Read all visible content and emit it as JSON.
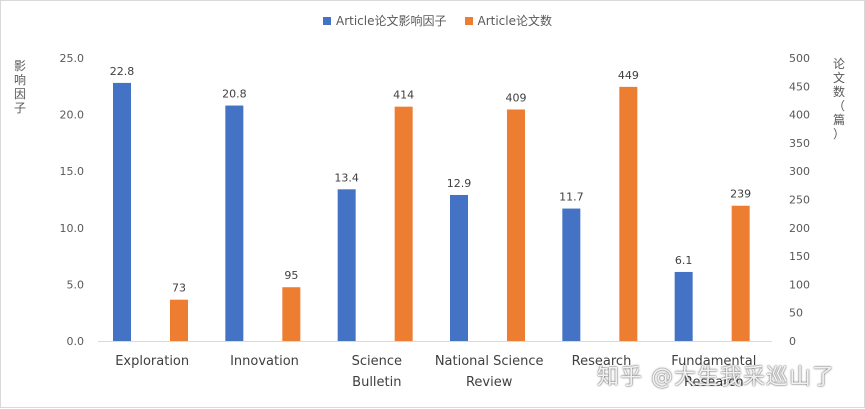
{
  "chart_data": {
    "type": "bar",
    "categories": [
      "Exploration",
      "Innovation",
      "Science Bulletin",
      "National Science Review",
      "Research",
      "Fundamental Research"
    ],
    "category_lines": [
      [
        "Exploration"
      ],
      [
        "Innovation"
      ],
      [
        "Science",
        "Bulletin"
      ],
      [
        "National Science",
        "Review"
      ],
      [
        "Research"
      ],
      [
        "Fundamental",
        "Research"
      ]
    ],
    "series": [
      {
        "name": "Article论文影响因子",
        "axis": "left",
        "color": "#4472C4",
        "values": [
          22.8,
          20.8,
          13.4,
          12.9,
          11.7,
          6.1
        ],
        "labels": [
          "22.8",
          "20.8",
          "13.4",
          "12.9",
          "11.7",
          "6.1"
        ]
      },
      {
        "name": "Article论文数",
        "axis": "right",
        "color": "#ED7D31",
        "values": [
          73,
          95,
          414,
          409,
          449,
          239
        ],
        "labels": [
          "73",
          "95",
          "414",
          "409",
          "449",
          "239"
        ]
      }
    ],
    "left_axis": {
      "label": "影响因子",
      "ylim": [
        0,
        25
      ],
      "ticks": [
        "0.0",
        "5.0",
        "10.0",
        "15.0",
        "20.0",
        "25.0"
      ]
    },
    "right_axis": {
      "label": "论文数（篇）",
      "ylim": [
        0,
        500
      ],
      "ticks": [
        "0",
        "50",
        "100",
        "150",
        "200",
        "250",
        "300",
        "350",
        "400",
        "450",
        "500"
      ]
    },
    "grid": false,
    "legend": "top-center"
  },
  "watermark": "知乎 @大生我采巡山了"
}
